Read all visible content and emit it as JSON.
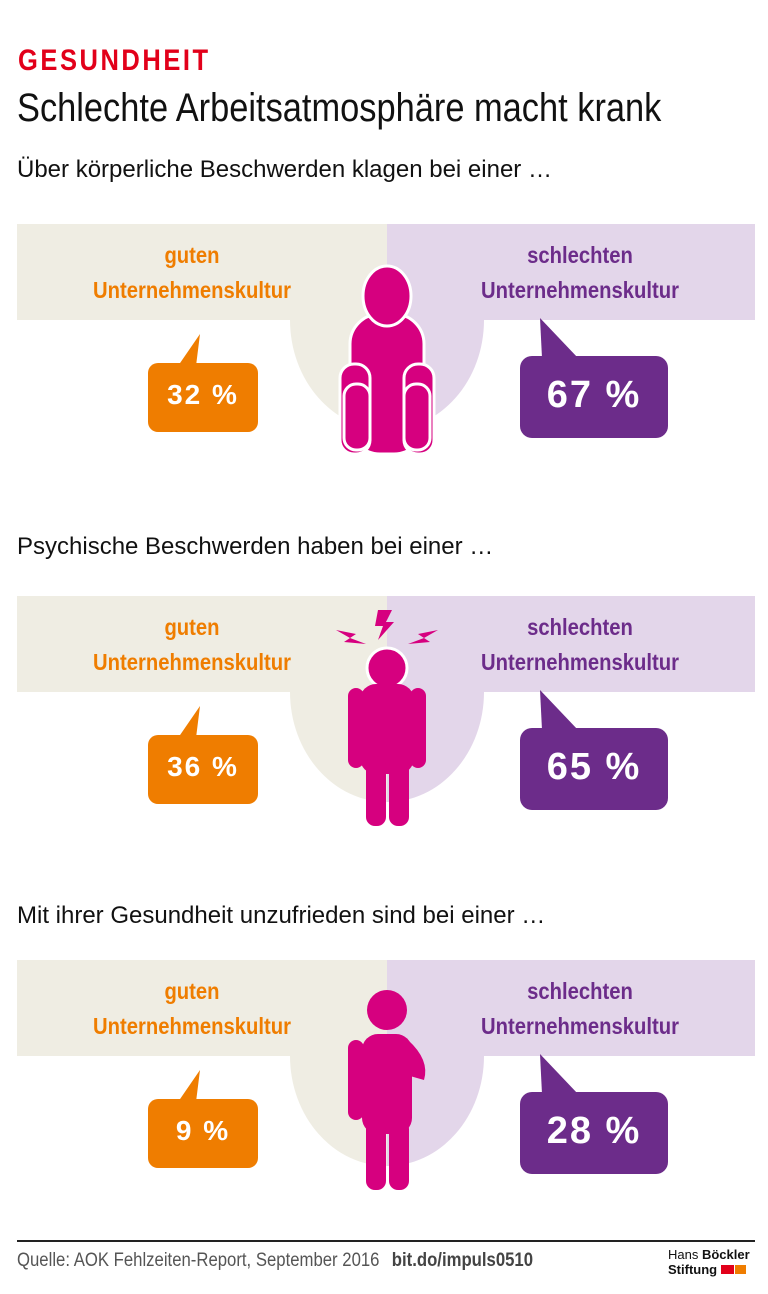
{
  "header": {
    "kicker": "GESUNDHEIT",
    "title": "Schlechte Arbeitsatmosphäre macht krank"
  },
  "colors": {
    "good_band": "#efede3",
    "bad_band": "#e3d6ea",
    "good": "#ef7d00",
    "bad": "#6c2c8a",
    "figure": "#d6007f",
    "kicker": "#e2001a"
  },
  "labels": {
    "good_line1": "guten",
    "bad_line1": "schlechten",
    "line2": "Unternehmenskultur"
  },
  "chart_data": {
    "type": "table",
    "categories": [
      "guten Unternehmenskultur",
      "schlechten Unternehmenskultur"
    ],
    "rows": [
      {
        "question": "Über körperliche Beschwerden klagen bei einer …",
        "good": "32 %",
        "bad": "67 %",
        "values": [
          32,
          67
        ],
        "icon": "slumped-person-icon"
      },
      {
        "question": "Psychische Beschwerden haben bei einer …",
        "good": "36 %",
        "bad": "65 %",
        "values": [
          36,
          65
        ],
        "icon": "headache-person-icon"
      },
      {
        "question": "Mit ihrer Gesundheit unzufrieden sind bei einer …",
        "good": "9 %",
        "bad": "28 %",
        "values": [
          9,
          28
        ],
        "icon": "pondering-person-icon"
      }
    ]
  },
  "footer": {
    "source": "Quelle: AOK Fehlzeiten-Report, September 2016",
    "link": "bit.do/impuls0510",
    "logo_line1": "Hans Böckler",
    "logo_line2": "Stiftung"
  }
}
